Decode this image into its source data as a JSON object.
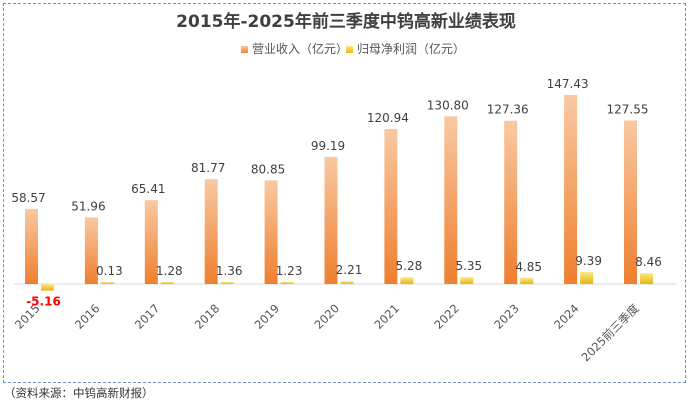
{
  "chart_data": {
    "type": "bar",
    "title": "2015年-2025年前三季度中钨高新业绩表现",
    "categories": [
      "2015",
      "2016",
      "2017",
      "2018",
      "2019",
      "2020",
      "2021",
      "2022",
      "2023",
      "2024",
      "2025前三季度"
    ],
    "series": [
      {
        "name": "营业收入（亿元）",
        "values": [
          58.57,
          51.96,
          65.41,
          81.77,
          80.85,
          99.19,
          120.94,
          130.8,
          127.36,
          147.43,
          127.55
        ],
        "labels": [
          "58.57",
          "51.96",
          "65.41",
          "81.77",
          "80.85",
          "99.19",
          "120.94",
          "130.80",
          "127.36",
          "147.43",
          "127.55"
        ]
      },
      {
        "name": "归母净利润（亿元）",
        "values": [
          -5.16,
          0.13,
          1.28,
          1.36,
          1.23,
          2.21,
          5.28,
          5.35,
          4.85,
          9.39,
          8.46
        ],
        "labels": [
          "-5.16",
          "0.13",
          "1.28",
          "1.36",
          "1.23",
          "2.21",
          "5.28",
          "5.35",
          "4.85",
          "9.39",
          "8.46"
        ]
      }
    ],
    "legend_position": "top-center",
    "grid": false
  },
  "colors": {
    "revenue_top": "#f9c9a2",
    "revenue_bottom": "#ee7f2e",
    "profit_top": "#fde88a",
    "profit_bottom": "#e8b40e",
    "negative_label": "#ff0000",
    "frame": "#6a8fd6"
  },
  "source_note": "（资料来源：中钨高新财报）"
}
